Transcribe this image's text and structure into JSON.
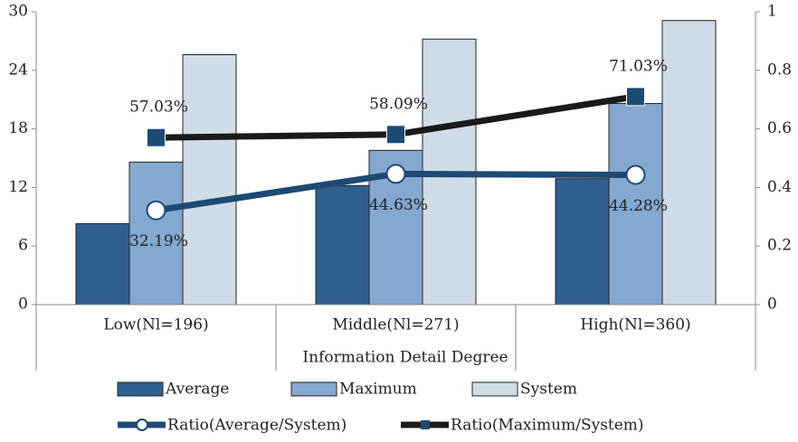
{
  "chart_data": {
    "type": "bar",
    "x_label": "Information Detail Degree",
    "categories": [
      "Low(Nl=196)",
      "Middle(Nl=271)",
      "High(Nl=360)"
    ],
    "series": [
      {
        "name": "Average",
        "type": "bar",
        "color": "#2f5f8f",
        "values": [
          8.3,
          12.2,
          12.9
        ]
      },
      {
        "name": "Maximum",
        "type": "bar",
        "color": "#84a8d0",
        "values": [
          14.6,
          15.8,
          20.6
        ]
      },
      {
        "name": "System",
        "type": "bar",
        "color": "#d0dce7",
        "values": [
          25.6,
          27.2,
          29.1
        ]
      },
      {
        "name": "Ratio(Average/System)",
        "type": "line",
        "axis": "y2",
        "color": "#1d4a73",
        "marker": "circle",
        "marker_color": "#ffffff",
        "values": [
          0.3219,
          0.4463,
          0.4428
        ],
        "value_labels": [
          "32.19%",
          "44.63%",
          "44.28%"
        ],
        "label_position": "below"
      },
      {
        "name": "Ratio(Maximum/System)",
        "type": "line",
        "axis": "y2",
        "color": "#1a1a1a",
        "marker": "square",
        "marker_color": "#1d4a73",
        "values": [
          0.5703,
          0.5809,
          0.7103
        ],
        "value_labels": [
          "57.03%",
          "58.09%",
          "71.03%"
        ],
        "label_position": "above"
      }
    ],
    "ylim": [
      0,
      30
    ],
    "yticks": [
      0,
      6,
      12,
      18,
      24,
      30
    ],
    "y2lim": [
      0,
      1
    ],
    "y2ticks": [
      0,
      0.2,
      0.4,
      0.6,
      0.8,
      1
    ],
    "grid": false,
    "legend": "bottom"
  }
}
